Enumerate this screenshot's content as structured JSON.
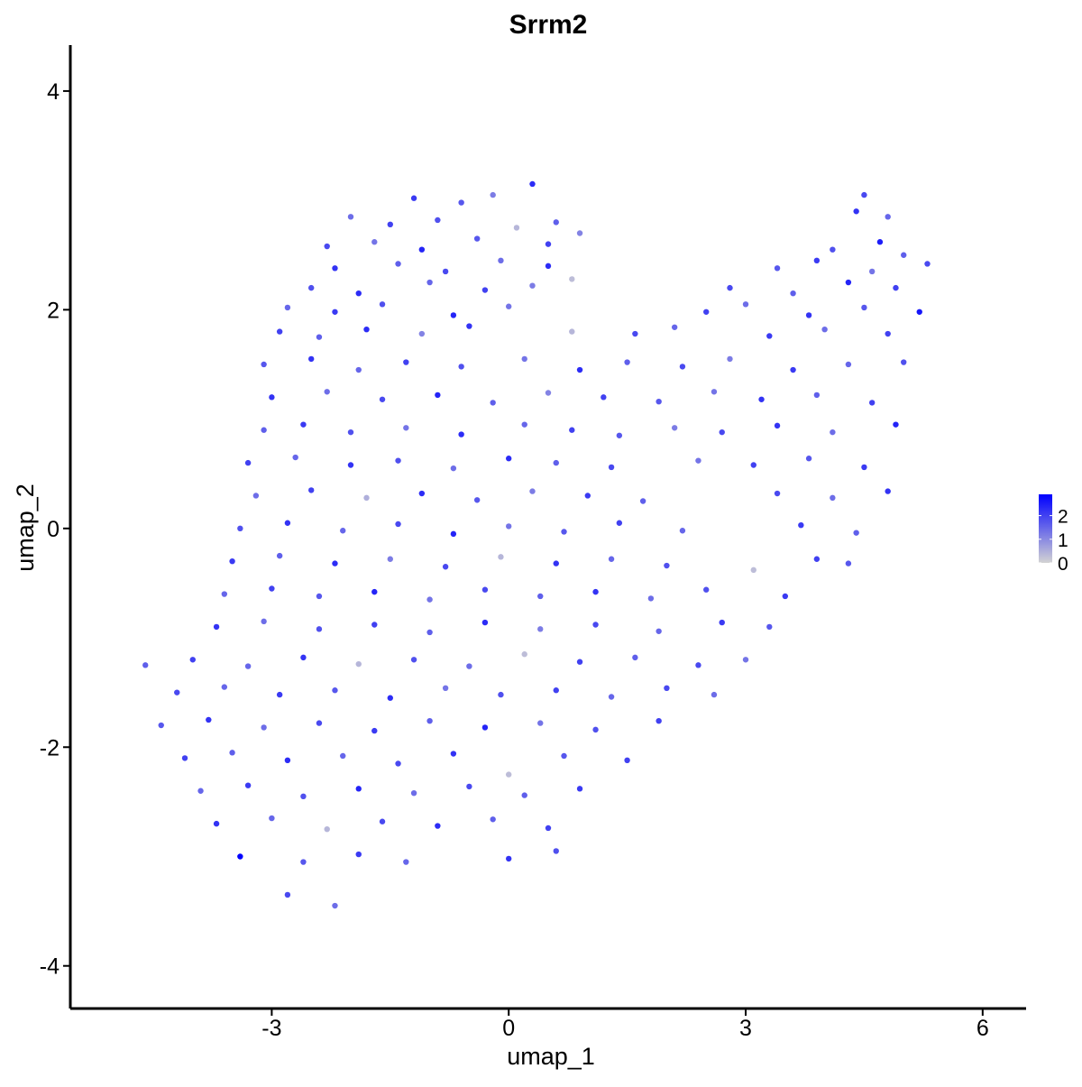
{
  "chart_data": {
    "type": "scatter",
    "title": "Srrm2",
    "x_label": "umap_1",
    "y_label": "umap_2",
    "xlim": [
      -5.55,
      6.55
    ],
    "ylim": [
      -4.39,
      4.42
    ],
    "xticks": [
      -3,
      0,
      3,
      6
    ],
    "yticks": [
      -4,
      -2,
      0,
      2,
      4
    ],
    "point_fields": [
      "umap_1",
      "umap_2",
      "expression"
    ],
    "colorbar": {
      "lim": [
        0,
        2.9
      ],
      "ticks": [
        0,
        1,
        2
      ],
      "low": "#d3d3d3",
      "high": "#0000ff"
    },
    "points": [
      [
        -1.2,
        3.02,
        2.1
      ],
      [
        -0.6,
        2.98,
        1.7
      ],
      [
        -0.2,
        3.05,
        1.2
      ],
      [
        0.3,
        3.15,
        2.3
      ],
      [
        4.5,
        3.05,
        1.9
      ],
      [
        -2.0,
        2.85,
        1.4
      ],
      [
        -1.5,
        2.78,
        2.0
      ],
      [
        -0.9,
        2.82,
        1.8
      ],
      [
        0.1,
        2.75,
        0.4
      ],
      [
        0.6,
        2.8,
        1.6
      ],
      [
        4.4,
        2.9,
        2.2
      ],
      [
        4.8,
        2.85,
        1.5
      ],
      [
        -2.3,
        2.58,
        1.9
      ],
      [
        -1.7,
        2.62,
        1.3
      ],
      [
        -1.1,
        2.55,
        2.4
      ],
      [
        -0.4,
        2.65,
        1.7
      ],
      [
        0.5,
        2.6,
        2.0
      ],
      [
        0.9,
        2.7,
        1.1
      ],
      [
        4.1,
        2.55,
        1.8
      ],
      [
        4.7,
        2.62,
        2.5
      ],
      [
        5.0,
        2.5,
        1.6
      ],
      [
        -2.2,
        2.38,
        2.2
      ],
      [
        -1.4,
        2.42,
        1.6
      ],
      [
        -0.8,
        2.35,
        1.9
      ],
      [
        -0.1,
        2.45,
        1.4
      ],
      [
        0.5,
        2.4,
        2.3
      ],
      [
        3.4,
        2.38,
        1.7
      ],
      [
        3.9,
        2.45,
        2.1
      ],
      [
        4.6,
        2.35,
        1.3
      ],
      [
        5.3,
        2.42,
        1.9
      ],
      [
        -2.5,
        2.2,
        1.8
      ],
      [
        -1.9,
        2.15,
        2.3
      ],
      [
        -1.0,
        2.25,
        1.5
      ],
      [
        -0.3,
        2.18,
        2.0
      ],
      [
        0.3,
        2.22,
        1.2
      ],
      [
        0.8,
        2.28,
        0.3
      ],
      [
        2.8,
        2.2,
        1.9
      ],
      [
        3.6,
        2.15,
        1.6
      ],
      [
        4.3,
        2.25,
        2.4
      ],
      [
        4.9,
        2.2,
        2.0
      ],
      [
        -2.8,
        2.02,
        1.5
      ],
      [
        -2.2,
        1.98,
        2.1
      ],
      [
        -1.6,
        2.05,
        1.8
      ],
      [
        -0.7,
        1.95,
        2.4
      ],
      [
        0.0,
        2.03,
        1.3
      ],
      [
        2.5,
        1.98,
        2.0
      ],
      [
        3.0,
        2.05,
        1.4
      ],
      [
        3.8,
        1.95,
        2.2
      ],
      [
        4.5,
        2.02,
        1.7
      ],
      [
        5.2,
        1.98,
        2.6
      ],
      [
        -2.9,
        1.8,
        2.0
      ],
      [
        -2.4,
        1.75,
        1.6
      ],
      [
        -1.8,
        1.82,
        2.3
      ],
      [
        -1.1,
        1.78,
        1.1
      ],
      [
        -0.5,
        1.85,
        2.2
      ],
      [
        0.8,
        1.8,
        0.4
      ],
      [
        1.6,
        1.78,
        1.9
      ],
      [
        2.1,
        1.84,
        1.5
      ],
      [
        3.3,
        1.76,
        2.1
      ],
      [
        4.0,
        1.82,
        1.4
      ],
      [
        4.8,
        1.78,
        2.0
      ],
      [
        -3.1,
        1.5,
        1.7
      ],
      [
        -2.5,
        1.55,
        2.2
      ],
      [
        -1.9,
        1.45,
        1.5
      ],
      [
        -1.3,
        1.52,
        2.0
      ],
      [
        -0.6,
        1.48,
        1.8
      ],
      [
        0.2,
        1.55,
        1.3
      ],
      [
        0.9,
        1.45,
        2.3
      ],
      [
        1.5,
        1.52,
        1.6
      ],
      [
        2.2,
        1.48,
        1.9
      ],
      [
        2.8,
        1.55,
        1.2
      ],
      [
        3.6,
        1.45,
        2.1
      ],
      [
        4.3,
        1.5,
        1.5
      ],
      [
        5.0,
        1.52,
        1.8
      ],
      [
        -3.0,
        1.2,
        2.2
      ],
      [
        -2.3,
        1.25,
        1.4
      ],
      [
        -1.6,
        1.18,
        1.9
      ],
      [
        -0.9,
        1.22,
        2.4
      ],
      [
        -0.2,
        1.15,
        1.6
      ],
      [
        0.5,
        1.24,
        1.1
      ],
      [
        1.2,
        1.2,
        2.0
      ],
      [
        1.9,
        1.16,
        1.7
      ],
      [
        2.6,
        1.25,
        1.3
      ],
      [
        3.2,
        1.18,
        2.2
      ],
      [
        3.9,
        1.22,
        1.6
      ],
      [
        4.6,
        1.15,
        2.0
      ],
      [
        -3.1,
        0.9,
        1.6
      ],
      [
        -2.6,
        0.95,
        2.1
      ],
      [
        -2.0,
        0.88,
        1.8
      ],
      [
        -1.3,
        0.92,
        1.3
      ],
      [
        -0.6,
        0.86,
        2.3
      ],
      [
        0.2,
        0.95,
        1.5
      ],
      [
        0.8,
        0.9,
        2.0
      ],
      [
        1.4,
        0.85,
        1.7
      ],
      [
        2.1,
        0.92,
        1.2
      ],
      [
        2.7,
        0.88,
        1.9
      ],
      [
        3.4,
        0.94,
        2.2
      ],
      [
        4.1,
        0.88,
        1.4
      ],
      [
        4.9,
        0.95,
        2.4
      ],
      [
        -3.3,
        0.6,
        2.0
      ],
      [
        -2.7,
        0.65,
        1.5
      ],
      [
        -2.0,
        0.58,
        2.2
      ],
      [
        -1.4,
        0.62,
        1.8
      ],
      [
        -0.7,
        0.55,
        1.4
      ],
      [
        0.0,
        0.64,
        2.3
      ],
      [
        0.6,
        0.6,
        1.6
      ],
      [
        1.3,
        0.56,
        1.9
      ],
      [
        2.4,
        0.62,
        1.3
      ],
      [
        3.1,
        0.58,
        2.0
      ],
      [
        3.8,
        0.64,
        1.7
      ],
      [
        4.5,
        0.56,
        2.1
      ],
      [
        -3.2,
        0.3,
        1.4
      ],
      [
        -2.5,
        0.35,
        2.0
      ],
      [
        -1.8,
        0.28,
        0.5
      ],
      [
        -1.1,
        0.32,
        2.3
      ],
      [
        -0.4,
        0.26,
        1.7
      ],
      [
        0.3,
        0.34,
        1.2
      ],
      [
        1.0,
        0.3,
        2.1
      ],
      [
        1.7,
        0.25,
        1.6
      ],
      [
        3.4,
        0.32,
        1.9
      ],
      [
        4.1,
        0.28,
        1.4
      ],
      [
        4.8,
        0.34,
        2.2
      ],
      [
        -3.4,
        0.0,
        1.8
      ],
      [
        -2.8,
        0.05,
        2.2
      ],
      [
        -2.1,
        -0.02,
        1.5
      ],
      [
        -1.4,
        0.04,
        1.9
      ],
      [
        -0.7,
        -0.05,
        2.4
      ],
      [
        0.0,
        0.02,
        1.3
      ],
      [
        0.7,
        -0.03,
        1.7
      ],
      [
        1.4,
        0.05,
        2.0
      ],
      [
        2.2,
        -0.02,
        1.5
      ],
      [
        3.7,
        0.03,
        2.1
      ],
      [
        4.4,
        -0.04,
        1.6
      ],
      [
        -3.5,
        -0.3,
        2.1
      ],
      [
        -2.9,
        -0.25,
        1.6
      ],
      [
        -2.2,
        -0.32,
        2.3
      ],
      [
        -1.5,
        -0.28,
        1.2
      ],
      [
        -0.8,
        -0.35,
        1.9
      ],
      [
        -0.1,
        -0.26,
        0.4
      ],
      [
        0.6,
        -0.32,
        2.2
      ],
      [
        1.3,
        -0.28,
        1.5
      ],
      [
        2.0,
        -0.34,
        1.8
      ],
      [
        3.1,
        -0.38,
        0.3
      ],
      [
        3.9,
        -0.28,
        2.0
      ],
      [
        4.3,
        -0.32,
        1.7
      ],
      [
        -3.6,
        -0.6,
        1.5
      ],
      [
        -3.0,
        -0.55,
        2.0
      ],
      [
        -2.4,
        -0.62,
        1.7
      ],
      [
        -1.7,
        -0.58,
        2.4
      ],
      [
        -1.0,
        -0.65,
        1.3
      ],
      [
        -0.3,
        -0.56,
        1.9
      ],
      [
        0.4,
        -0.62,
        1.6
      ],
      [
        1.1,
        -0.58,
        2.2
      ],
      [
        1.8,
        -0.64,
        1.4
      ],
      [
        2.5,
        -0.56,
        1.8
      ],
      [
        3.5,
        -0.62,
        2.1
      ],
      [
        -3.7,
        -0.9,
        2.2
      ],
      [
        -3.1,
        -0.85,
        1.4
      ],
      [
        -2.4,
        -0.92,
        1.8
      ],
      [
        -1.7,
        -0.88,
        2.0
      ],
      [
        -1.0,
        -0.95,
        1.6
      ],
      [
        -0.3,
        -0.86,
        2.3
      ],
      [
        0.4,
        -0.92,
        1.2
      ],
      [
        1.1,
        -0.88,
        1.9
      ],
      [
        1.9,
        -0.94,
        1.5
      ],
      [
        2.7,
        -0.86,
        2.1
      ],
      [
        3.3,
        -0.9,
        1.7
      ],
      [
        -4.6,
        -1.25,
        1.6
      ],
      [
        -4.0,
        -1.2,
        2.0
      ],
      [
        -3.3,
        -1.26,
        1.5
      ],
      [
        -2.6,
        -1.18,
        2.2
      ],
      [
        -1.9,
        -1.24,
        0.4
      ],
      [
        -1.2,
        -1.2,
        1.8
      ],
      [
        -0.5,
        -1.26,
        1.4
      ],
      [
        0.2,
        -1.15,
        0.3
      ],
      [
        0.9,
        -1.22,
        2.0
      ],
      [
        1.6,
        -1.18,
        1.6
      ],
      [
        2.4,
        -1.25,
        1.9
      ],
      [
        3.0,
        -1.2,
        1.3
      ],
      [
        -4.2,
        -1.5,
        1.9
      ],
      [
        -3.6,
        -1.45,
        1.5
      ],
      [
        -2.9,
        -1.52,
        2.1
      ],
      [
        -2.2,
        -1.48,
        1.7
      ],
      [
        -1.5,
        -1.55,
        2.3
      ],
      [
        -0.8,
        -1.46,
        1.3
      ],
      [
        -0.1,
        -1.52,
        1.8
      ],
      [
        0.6,
        -1.48,
        2.0
      ],
      [
        1.3,
        -1.54,
        1.5
      ],
      [
        2.0,
        -1.46,
        1.9
      ],
      [
        2.6,
        -1.52,
        1.4
      ],
      [
        -4.4,
        -1.8,
        1.7
      ],
      [
        -3.8,
        -1.75,
        2.2
      ],
      [
        -3.1,
        -1.82,
        1.4
      ],
      [
        -2.4,
        -1.78,
        1.9
      ],
      [
        -1.7,
        -1.85,
        2.1
      ],
      [
        -1.0,
        -1.76,
        1.6
      ],
      [
        -0.3,
        -1.82,
        2.4
      ],
      [
        0.4,
        -1.78,
        1.3
      ],
      [
        1.1,
        -1.84,
        1.8
      ],
      [
        1.9,
        -1.76,
        2.0
      ],
      [
        -4.1,
        -2.1,
        2.0
      ],
      [
        -3.5,
        -2.05,
        1.6
      ],
      [
        -2.8,
        -2.12,
        2.3
      ],
      [
        -2.1,
        -2.08,
        1.5
      ],
      [
        -1.4,
        -2.15,
        1.9
      ],
      [
        -0.7,
        -2.06,
        2.2
      ],
      [
        0.0,
        -2.25,
        0.3
      ],
      [
        0.7,
        -2.08,
        1.7
      ],
      [
        1.5,
        -2.12,
        2.0
      ],
      [
        -3.9,
        -2.4,
        1.5
      ],
      [
        -3.3,
        -2.35,
        2.1
      ],
      [
        -2.6,
        -2.45,
        1.8
      ],
      [
        -1.9,
        -2.38,
        2.4
      ],
      [
        -1.2,
        -2.42,
        1.4
      ],
      [
        -0.5,
        -2.36,
        1.9
      ],
      [
        0.2,
        -2.44,
        1.6
      ],
      [
        0.9,
        -2.38,
        2.1
      ],
      [
        -3.7,
        -2.7,
        2.2
      ],
      [
        -3.0,
        -2.65,
        1.5
      ],
      [
        -2.3,
        -2.75,
        0.4
      ],
      [
        -1.6,
        -2.68,
        1.9
      ],
      [
        -0.9,
        -2.72,
        2.3
      ],
      [
        -0.2,
        -2.66,
        1.6
      ],
      [
        0.5,
        -2.74,
        2.0
      ],
      [
        -3.4,
        -3.0,
        2.9
      ],
      [
        -2.6,
        -3.05,
        1.7
      ],
      [
        -1.9,
        -2.98,
        2.1
      ],
      [
        -1.3,
        -3.05,
        1.5
      ],
      [
        0.0,
        -3.02,
        2.2
      ],
      [
        0.6,
        -2.95,
        1.8
      ],
      [
        -2.8,
        -3.35,
        1.9
      ],
      [
        -2.2,
        -3.45,
        1.4
      ]
    ]
  }
}
